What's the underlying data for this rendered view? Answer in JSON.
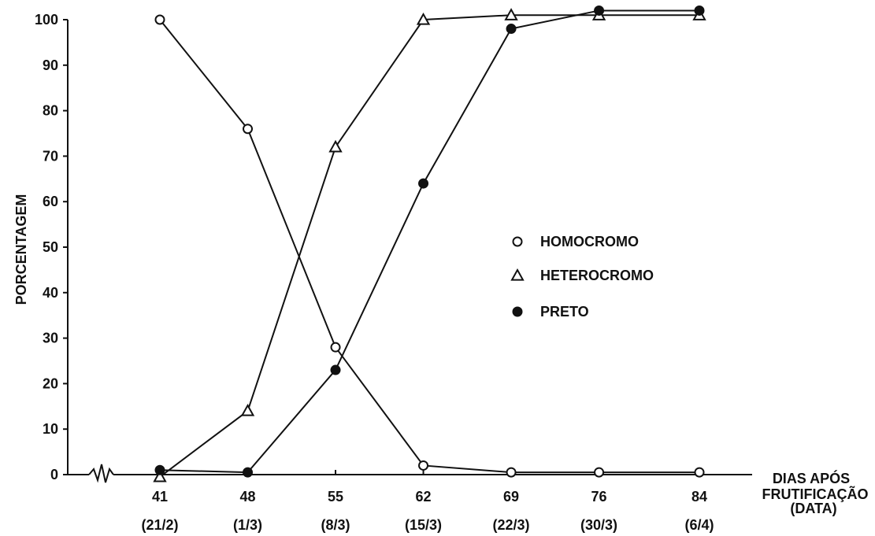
{
  "chart_data": {
    "type": "line",
    "ylabel": "PORCENTAGEM",
    "xlabel_lines": [
      "DIAS APÓS",
      "FRUTIFICAÇÃO",
      "(DATA)"
    ],
    "x": [
      41,
      48,
      55,
      62,
      69,
      76,
      84
    ],
    "x_tick_labels": [
      "41",
      "48",
      "55",
      "62",
      "69",
      "76",
      "84"
    ],
    "x_date_labels": [
      "(21/2)",
      "(1/3)",
      "(8/3)",
      "(15/3)",
      "(22/3)",
      "(30/3)",
      "(6/4)"
    ],
    "y_ticks": [
      0,
      10,
      20,
      30,
      40,
      50,
      60,
      70,
      80,
      90,
      100
    ],
    "y_tick_labels": [
      "0",
      "10",
      "20",
      "30",
      "40",
      "50",
      "60",
      "70",
      "80",
      "90",
      "100"
    ],
    "ylim": [
      0,
      100
    ],
    "axis_break": true,
    "legend_position": "center-right",
    "series": [
      {
        "name": "HOMOCROMO",
        "marker": "open-circle",
        "values": [
          100,
          76,
          28,
          2,
          0.5,
          0.5,
          0.5
        ]
      },
      {
        "name": "HETEROCROMO",
        "marker": "open-triangle",
        "values": [
          -0.5,
          14,
          72,
          100,
          101,
          101,
          101
        ]
      },
      {
        "name": "PRETO",
        "marker": "filled-circle",
        "values": [
          1,
          0.5,
          23,
          64,
          98,
          102,
          102
        ]
      }
    ]
  }
}
